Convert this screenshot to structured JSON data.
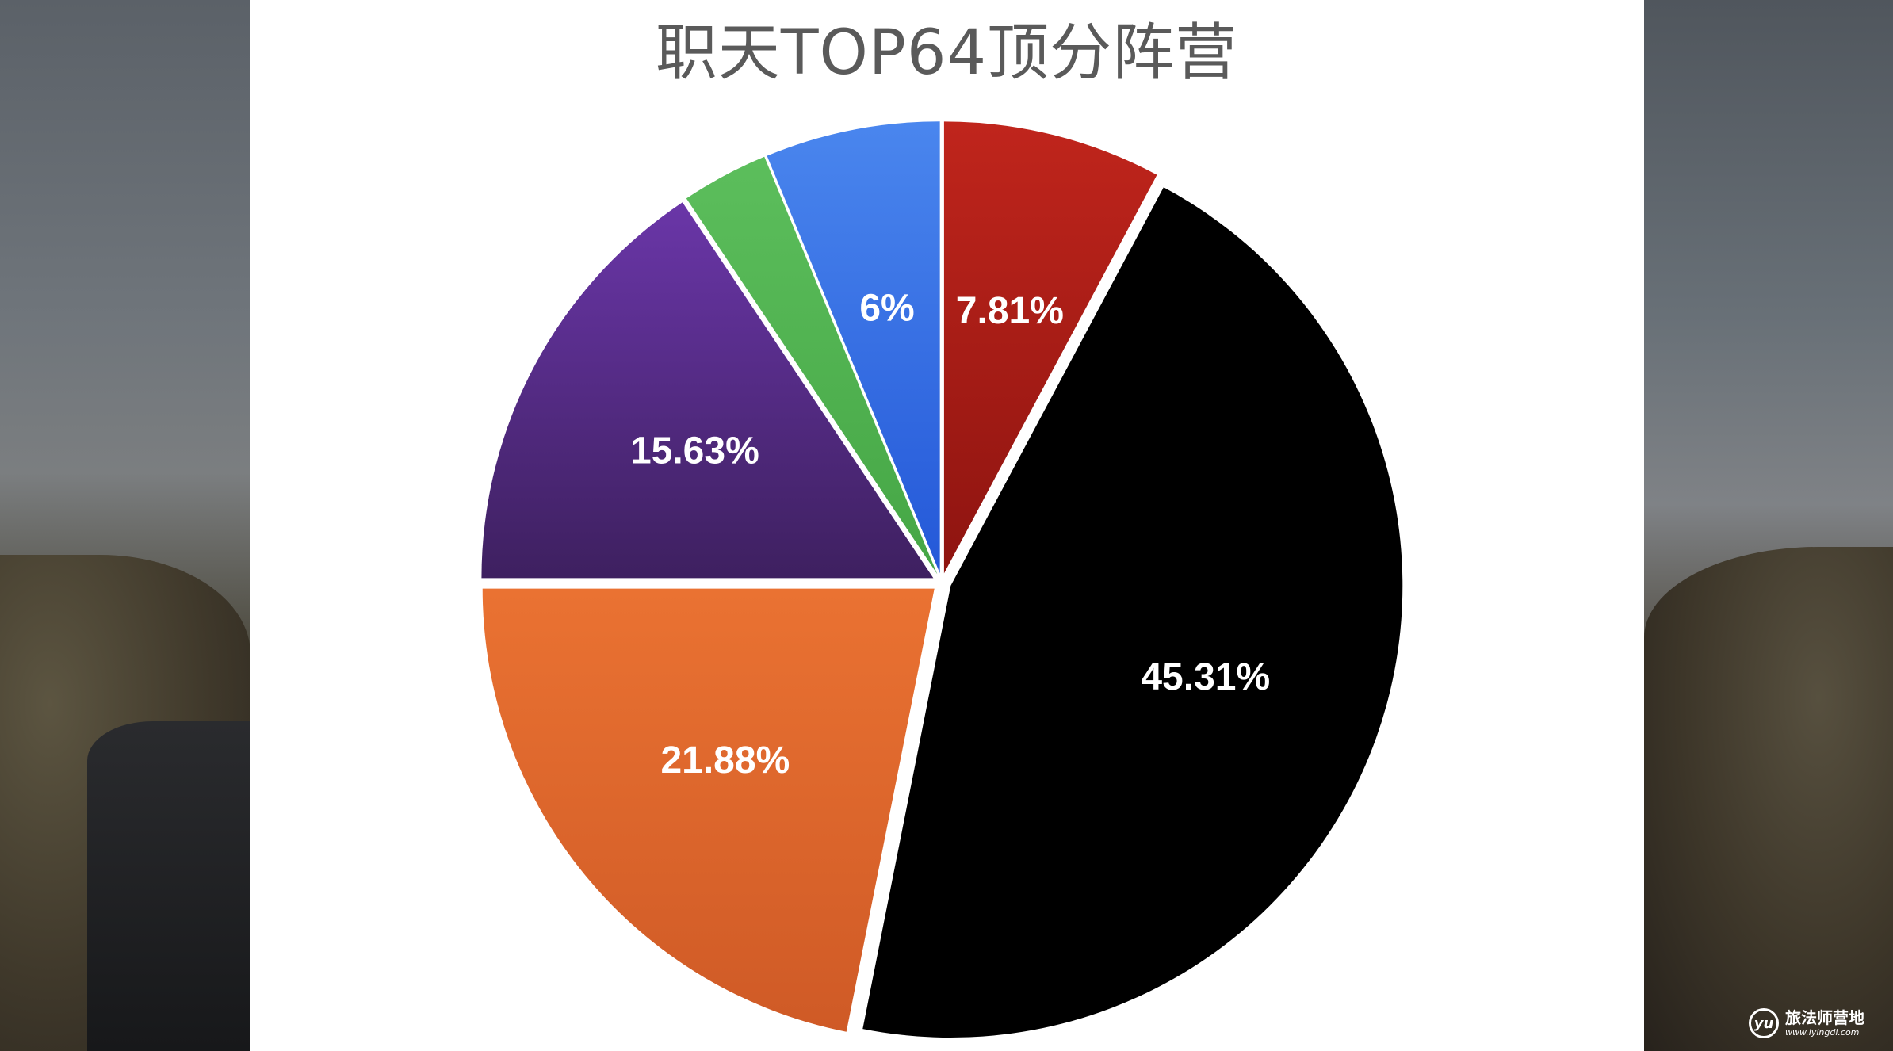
{
  "chart_data": {
    "type": "pie",
    "title": "职天TOP64顶分阵营",
    "slices": [
      {
        "label": "7.81%",
        "value": 7.81,
        "color": "#c0251c",
        "color_dark": "#8e1410",
        "label_color": "#ffffff"
      },
      {
        "label": "45.31%",
        "value": 45.31,
        "color": "#000000",
        "color_dark": "#000000",
        "label_color": "#ffffff"
      },
      {
        "label": "21.88%",
        "value": 21.88,
        "color": "#ea7232",
        "color_dark": "#cf5a26",
        "label_color": "#ffffff"
      },
      {
        "label": "15.63%",
        "value": 15.63,
        "color": "#6a36a8",
        "color_dark": "#3e2060",
        "label_color": "#ffffff"
      },
      {
        "label": "",
        "value": 3.12,
        "color": "#5cbe5c",
        "color_dark": "#45a645",
        "label_color": "#ffffff"
      },
      {
        "label": "6%",
        "value": 6.25,
        "color": "#4a86ee",
        "color_dark": "#2458d8",
        "label_color": "#ffffff"
      }
    ],
    "start_angle_deg": 0,
    "direction": "clockwise",
    "legend": "none"
  },
  "watermark": {
    "logo": "yu",
    "name": "旅法师营地",
    "url": "www.iyingdi.com"
  }
}
